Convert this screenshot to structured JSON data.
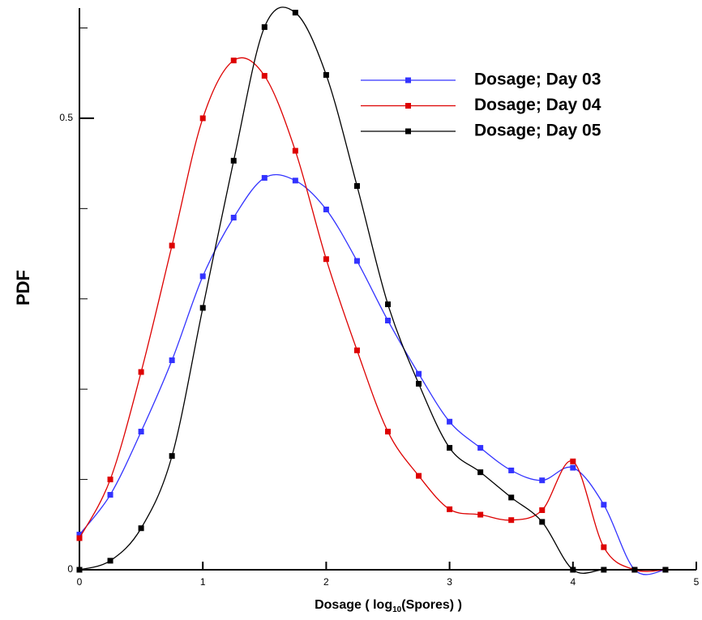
{
  "chart_data": {
    "type": "line",
    "ylabel": "PDF",
    "xlabel_parts": [
      "Dosage ( log",
      "10",
      "(Spores) )"
    ],
    "x": [
      0,
      0.25,
      0.5,
      0.75,
      1,
      1.25,
      1.5,
      1.75,
      2,
      2.25,
      2.5,
      2.75,
      3,
      3.25,
      3.5,
      3.75,
      4,
      4.25,
      4.5,
      4.75
    ],
    "series": [
      {
        "name": "Dosage; Day 03",
        "color": "#3333ff",
        "values": [
          0.039,
          0.083,
          0.153,
          0.232,
          0.325,
          0.39,
          0.434,
          0.431,
          0.399,
          0.342,
          0.276,
          0.217,
          0.164,
          0.135,
          0.11,
          0.099,
          0.113,
          0.072,
          0,
          0
        ]
      },
      {
        "name": "Dosage; Day 04",
        "color": "#dd0000",
        "values": [
          0.035,
          0.1,
          0.219,
          0.359,
          0.5,
          0.564,
          0.547,
          0.464,
          0.344,
          0.243,
          0.153,
          0.104,
          0.067,
          0.061,
          0.055,
          0.066,
          0.12,
          0.025,
          0,
          0
        ]
      },
      {
        "name": "Dosage; Day 05",
        "color": "#000000",
        "values": [
          0,
          0.01,
          0.046,
          0.126,
          0.29,
          0.453,
          0.601,
          0.617,
          0.548,
          0.425,
          0.294,
          0.206,
          0.135,
          0.108,
          0.08,
          0.053,
          0,
          0,
          0,
          0
        ]
      }
    ],
    "xlim": [
      0,
      5
    ],
    "xticks": [
      0,
      1,
      2,
      3,
      4,
      5
    ],
    "ylim": [
      0,
      0.622
    ],
    "yticks": [
      0,
      0.5
    ],
    "yminor_ticks": [
      0.1,
      0.2,
      0.3,
      0.4,
      0.6
    ],
    "legend": "top-right"
  }
}
